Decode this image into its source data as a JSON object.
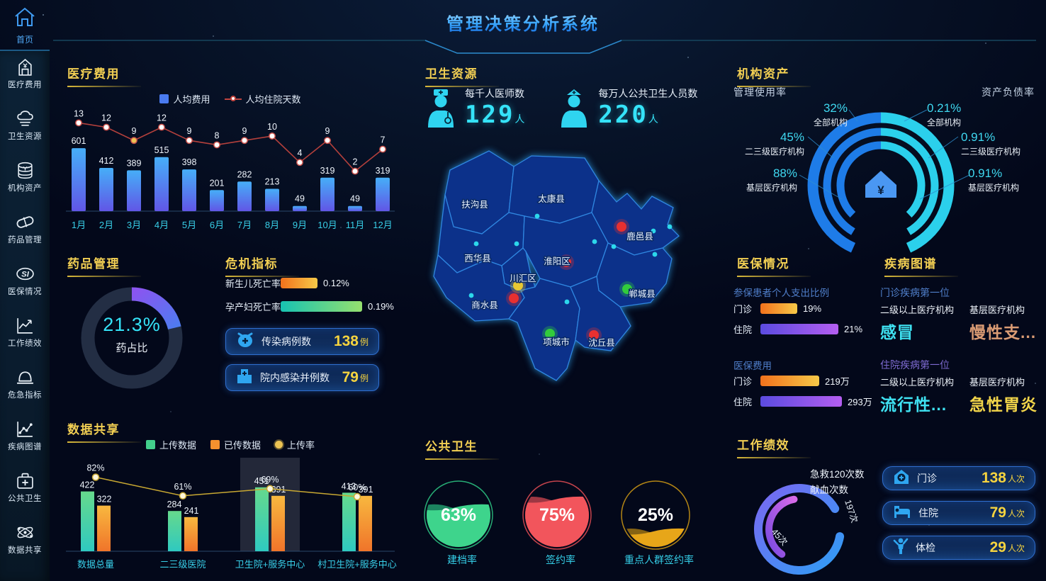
{
  "header": {
    "title": "管理决策分析系统"
  },
  "sidebar": {
    "home": {
      "label": "首页"
    },
    "items": [
      {
        "label": "医疗费用",
        "icon": "hospital-yen-icon"
      },
      {
        "label": "卫生资源",
        "icon": "cloud-icon"
      },
      {
        "label": "机构资产",
        "icon": "coin-stack-icon"
      },
      {
        "label": "药品管理",
        "icon": "capsule-icon"
      },
      {
        "label": "医保情况",
        "icon": "si-badge-icon"
      },
      {
        "label": "工作绩效",
        "icon": "trend-chart-icon"
      },
      {
        "label": "危急指标",
        "icon": "alarm-dome-icon"
      },
      {
        "label": "疾病图谱",
        "icon": "dot-line-chart-icon"
      },
      {
        "label": "公共卫生",
        "icon": "first-aid-kit-icon"
      },
      {
        "label": "数据共享",
        "icon": "share-orbit-icon"
      }
    ]
  },
  "medical_cost": {
    "title": "医疗费用",
    "chart_data": {
      "type": "bar+line",
      "categories": [
        "1月",
        "2月",
        "3月",
        "4月",
        "5月",
        "6月",
        "7月",
        "8月",
        "9月",
        "10月",
        "11月",
        "12月"
      ],
      "series": [
        {
          "name": "人均费用",
          "type": "bar",
          "values": [
            601,
            412,
            389,
            515,
            398,
            201,
            282,
            213,
            49,
            319,
            49,
            319
          ]
        },
        {
          "name": "人均住院天数",
          "type": "line",
          "values": [
            13,
            12,
            9,
            12,
            9,
            8,
            9,
            10,
            4,
            9,
            2,
            7
          ]
        }
      ],
      "highlight_index": 2
    }
  },
  "drug_mgmt": {
    "title": "药品管理",
    "percent": "21.3%",
    "value": 21.3,
    "label": "药占比"
  },
  "crisis": {
    "title": "危机指标",
    "bars": [
      {
        "label": "新生儿死亡率",
        "value": "0.12%",
        "bar_len": 52,
        "color": "orange"
      },
      {
        "label": "孕产妇死亡率",
        "value": "0.19%",
        "bar_len": 115,
        "color": "teal"
      }
    ],
    "stats": [
      {
        "label": "传染病例数",
        "value": "138",
        "unit": "例",
        "icon": "virus-face-icon"
      },
      {
        "label": "院内感染并例数",
        "value": "79",
        "unit": "例",
        "icon": "hospital-building-icon"
      }
    ]
  },
  "data_share": {
    "title": "数据共享",
    "chart_data": {
      "type": "grouped-bar+line",
      "categories": [
        "数据总量",
        "二三级医院",
        "卫生院+服务中心",
        "村卫生院+服务中心"
      ],
      "series": [
        {
          "name": "上传数据",
          "type": "bar",
          "values": [
            422,
            284,
            451,
            413
          ]
        },
        {
          "name": "已传数据",
          "type": "bar",
          "values": [
            322,
            241,
            391,
            391
          ]
        },
        {
          "name": "上传率",
          "type": "line",
          "values": [
            82,
            61,
            69,
            60
          ],
          "unit": "%"
        }
      ],
      "highlight_index": 2
    }
  },
  "health_resource": {
    "title": "卫生资源",
    "stats": [
      {
        "label": "每千人医师数",
        "value": "129",
        "unit": "人",
        "icon": "doctor-icon"
      },
      {
        "label": "每万人公共卫生人员数",
        "value": "220",
        "unit": "人",
        "icon": "nurse-icon"
      }
    ]
  },
  "map": {
    "districts": [
      {
        "name": "扶沟县",
        "marker": null
      },
      {
        "name": "太康县",
        "marker": null
      },
      {
        "name": "鹿邑县",
        "marker": "red"
      },
      {
        "name": "西华县",
        "marker": null
      },
      {
        "name": "淮阳区",
        "marker": "red"
      },
      {
        "name": "川汇区",
        "marker": "yellow"
      },
      {
        "name": "商水县",
        "marker": "red"
      },
      {
        "name": "郸城县",
        "marker": "green"
      },
      {
        "name": "项城市",
        "marker": "green"
      },
      {
        "name": "沈丘县",
        "marker": "red"
      }
    ]
  },
  "org_assets": {
    "title": "机构资产",
    "left_header": "管理使用率",
    "right_header": "资产负债率",
    "left": [
      {
        "value": "32%",
        "label": "全部机构"
      },
      {
        "value": "45%",
        "label": "二三级医疗机构"
      },
      {
        "value": "88%",
        "label": "基层医疗机构"
      }
    ],
    "right": [
      {
        "value": "0.21%",
        "label": "全部机构"
      },
      {
        "value": "0.91%",
        "label": "二三级医疗机构"
      },
      {
        "value": "0.91%",
        "label": "基层医疗机构"
      }
    ]
  },
  "insurance": {
    "title": "医保情况",
    "groups": [
      {
        "subtitle": "参保患者个人支出比例",
        "rows": [
          {
            "label": "门诊",
            "value": "19%",
            "bar_len": 52,
            "color": "orange"
          },
          {
            "label": "住院",
            "value": "21%",
            "bar_len": 110,
            "color": "purple"
          }
        ]
      },
      {
        "subtitle": "医保费用",
        "rows": [
          {
            "label": "门诊",
            "value": "219万",
            "bar_len": 83,
            "color": "orange"
          },
          {
            "label": "住院",
            "value": "293万",
            "bar_len": 115,
            "color": "purple"
          }
        ]
      }
    ]
  },
  "disease": {
    "title": "疾病图谱",
    "groups": [
      {
        "subtitle": "门诊疾病第一位",
        "items": [
          {
            "org": "二级以上医疗机构",
            "disease": "感冒",
            "color": "cyan"
          },
          {
            "org": "基层医疗机构",
            "disease": "慢性支...",
            "color": "tan"
          }
        ]
      },
      {
        "subtitle": "住院疾病第一位",
        "items": [
          {
            "org": "二级以上医疗机构",
            "disease": "流行性...",
            "color": "cyan"
          },
          {
            "org": "基层医疗机构",
            "disease": "急性胃炎",
            "color": "yellow"
          }
        ]
      }
    ]
  },
  "public_health": {
    "title": "公共卫生",
    "gauges": [
      {
        "label": "建档率",
        "value": 63,
        "display": "63%",
        "color": "green"
      },
      {
        "label": "签约率",
        "value": 75,
        "display": "75%",
        "color": "red"
      },
      {
        "label": "重点人群签约率",
        "value": 25,
        "display": "25%",
        "color": "gold"
      }
    ]
  },
  "performance": {
    "title": "工作绩效",
    "arcs": [
      {
        "label": "急救120次数",
        "value": "197次",
        "color": "blue"
      },
      {
        "label": "献血次数",
        "value": "45次",
        "color": "purple"
      }
    ],
    "stats": [
      {
        "label": "门诊",
        "value": "138",
        "unit": "人次",
        "icon": "clinic-house-icon"
      },
      {
        "label": "住院",
        "value": "79",
        "unit": "人次",
        "icon": "bed-icon"
      },
      {
        "label": "体检",
        "value": "29",
        "unit": "人次",
        "icon": "person-check-icon"
      }
    ]
  }
}
